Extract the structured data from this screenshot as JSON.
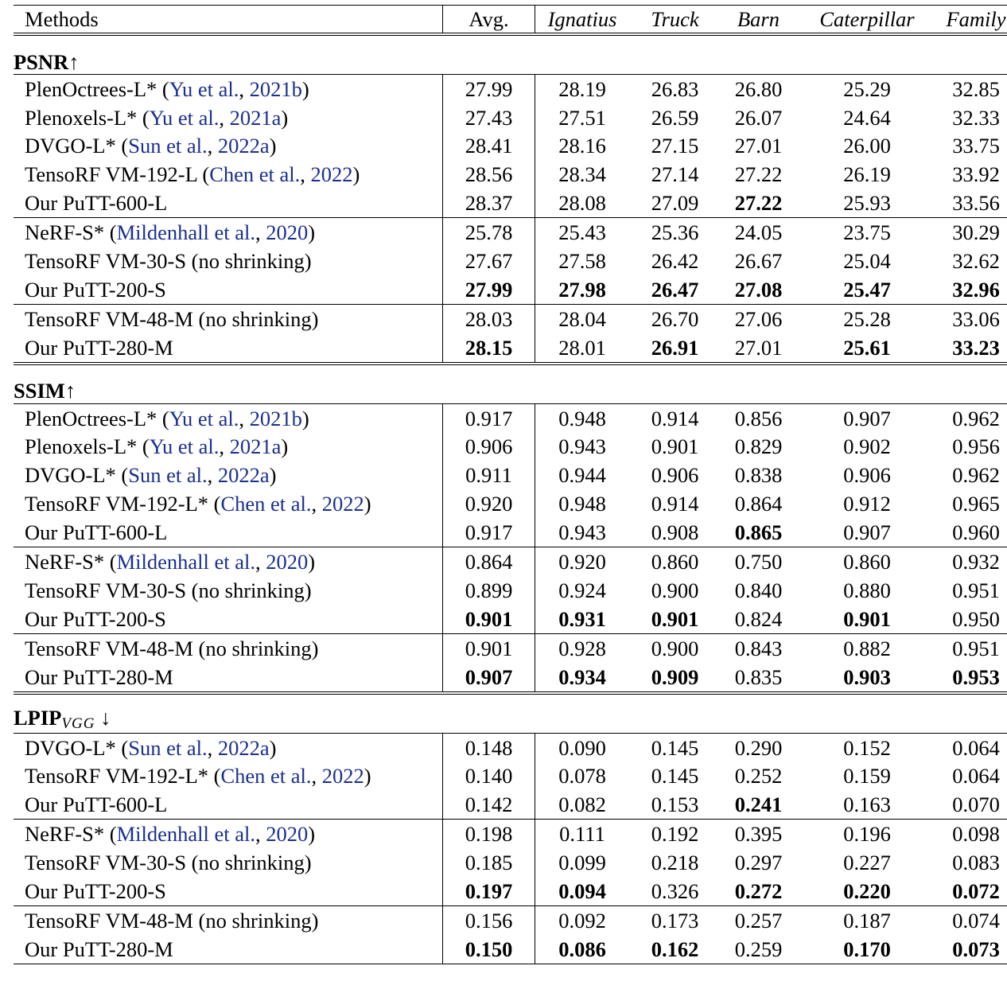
{
  "columns": [
    "Methods",
    "Avg.",
    "Ignatius",
    "Truck",
    "Barn",
    "Caterpillar",
    "Family"
  ],
  "sections": [
    {
      "name": "PSNR",
      "arrow": "↑",
      "subscript": "",
      "groups": [
        [
          {
            "method": "PlenOctrees-L* (",
            "cite_a": "Yu et al.",
            "cite_sep": ", ",
            "cite_b": "2021b",
            "suffix": ")",
            "values": [
              "27.99",
              "28.19",
              "26.83",
              "26.80",
              "25.29",
              "32.85"
            ],
            "bold": [
              false,
              false,
              false,
              false,
              false,
              false
            ]
          },
          {
            "method": "Plenoxels-L* (",
            "cite_a": "Yu et al.",
            "cite_sep": ", ",
            "cite_b": "2021a",
            "suffix": ")",
            "values": [
              "27.43",
              "27.51",
              "26.59",
              "26.07",
              "24.64",
              "32.33"
            ],
            "bold": [
              false,
              false,
              false,
              false,
              false,
              false
            ]
          },
          {
            "method": "DVGO-L* (",
            "cite_a": "Sun et al.",
            "cite_sep": ", ",
            "cite_b": "2022a",
            "suffix": ")",
            "values": [
              "28.41",
              "28.16",
              "27.15",
              "27.01",
              "26.00",
              "33.75"
            ],
            "bold": [
              false,
              false,
              false,
              false,
              false,
              false
            ]
          },
          {
            "method": "TensoRF VM-192-L (",
            "cite_a": "Chen et al.",
            "cite_sep": ", ",
            "cite_b": "2022",
            "suffix": ")",
            "values": [
              "28.56",
              "28.34",
              "27.14",
              "27.22",
              "26.19",
              "33.92"
            ],
            "bold": [
              false,
              false,
              false,
              false,
              false,
              false
            ]
          },
          {
            "method": "Our PuTT-600-L",
            "values": [
              "28.37",
              "28.08",
              "27.09",
              "27.22",
              "25.93",
              "33.56"
            ],
            "bold": [
              false,
              false,
              false,
              true,
              false,
              false
            ]
          }
        ],
        [
          {
            "method": "NeRF-S* (",
            "cite_a": "Mildenhall et al.",
            "cite_sep": ", ",
            "cite_b": "2020",
            "suffix": ")",
            "values": [
              "25.78",
              "25.43",
              "25.36",
              "24.05",
              "23.75",
              "30.29"
            ],
            "bold": [
              false,
              false,
              false,
              false,
              false,
              false
            ]
          },
          {
            "method": "TensoRF VM-30-S (no shrinking)",
            "values": [
              "27.67",
              "27.58",
              "26.42",
              "26.67",
              "25.04",
              "32.62"
            ],
            "bold": [
              false,
              false,
              false,
              false,
              false,
              false
            ]
          },
          {
            "method": "Our PuTT-200-S",
            "values": [
              "27.99",
              "27.98",
              "26.47",
              "27.08",
              "25.47",
              "32.96"
            ],
            "bold": [
              true,
              true,
              true,
              true,
              true,
              true
            ]
          }
        ],
        [
          {
            "method": "TensoRF VM-48-M (no shrinking)",
            "values": [
              "28.03",
              "28.04",
              "26.70",
              "27.06",
              "25.28",
              "33.06"
            ],
            "bold": [
              false,
              false,
              false,
              false,
              false,
              false
            ]
          },
          {
            "method": "Our PuTT-280-M",
            "values": [
              "28.15",
              "28.01",
              "26.91",
              "27.01",
              "25.61",
              "33.23"
            ],
            "bold": [
              true,
              false,
              true,
              false,
              true,
              true
            ]
          }
        ]
      ]
    },
    {
      "name": "SSIM",
      "arrow": "↑",
      "subscript": "",
      "groups": [
        [
          {
            "method": "PlenOctrees-L* (",
            "cite_a": "Yu et al.",
            "cite_sep": ", ",
            "cite_b": "2021b",
            "suffix": ")",
            "values": [
              "0.917",
              "0.948",
              "0.914",
              "0.856",
              "0.907",
              "0.962"
            ],
            "bold": [
              false,
              false,
              false,
              false,
              false,
              false
            ]
          },
          {
            "method": "Plenoxels-L* (",
            "cite_a": "Yu et al.",
            "cite_sep": ", ",
            "cite_b": "2021a",
            "suffix": ")",
            "values": [
              "0.906",
              "0.943",
              "0.901",
              "0.829",
              "0.902",
              "0.956"
            ],
            "bold": [
              false,
              false,
              false,
              false,
              false,
              false
            ]
          },
          {
            "method": "DVGO-L* (",
            "cite_a": "Sun et al.",
            "cite_sep": ", ",
            "cite_b": "2022a",
            "suffix": ")",
            "values": [
              "0.911",
              "0.944",
              "0.906",
              "0.838",
              "0.906",
              "0.962"
            ],
            "bold": [
              false,
              false,
              false,
              false,
              false,
              false
            ]
          },
          {
            "method": "TensoRF VM-192-L* (",
            "cite_a": "Chen et al.",
            "cite_sep": ", ",
            "cite_b": "2022",
            "suffix": ")",
            "values": [
              "0.920",
              "0.948",
              "0.914",
              "0.864",
              "0.912",
              "0.965"
            ],
            "bold": [
              false,
              false,
              false,
              false,
              false,
              false
            ]
          },
          {
            "method": "Our PuTT-600-L",
            "values": [
              "0.917",
              "0.943",
              "0.908",
              "0.865",
              "0.907",
              "0.960"
            ],
            "bold": [
              false,
              false,
              false,
              true,
              false,
              false
            ]
          }
        ],
        [
          {
            "method": "NeRF-S* (",
            "cite_a": "Mildenhall et al.",
            "cite_sep": ", ",
            "cite_b": "2020",
            "suffix": ")",
            "values": [
              "0.864",
              "0.920",
              "0.860",
              "0.750",
              "0.860",
              "0.932"
            ],
            "bold": [
              false,
              false,
              false,
              false,
              false,
              false
            ]
          },
          {
            "method": "TensoRF VM-30-S (no shrinking)",
            "values": [
              "0.899",
              "0.924",
              "0.900",
              "0.840",
              "0.880",
              "0.951"
            ],
            "bold": [
              false,
              false,
              false,
              false,
              false,
              false
            ]
          },
          {
            "method": "Our PuTT-200-S",
            "values": [
              "0.901",
              "0.931",
              "0.901",
              "0.824",
              "0.901",
              "0.950"
            ],
            "bold": [
              true,
              true,
              true,
              false,
              true,
              false
            ]
          }
        ],
        [
          {
            "method": "TensoRF VM-48-M (no shrinking)",
            "values": [
              "0.901",
              "0.928",
              "0.900",
              "0.843",
              "0.882",
              "0.951"
            ],
            "bold": [
              false,
              false,
              false,
              false,
              false,
              false
            ]
          },
          {
            "method": "Our PuTT-280-M",
            "values": [
              "0.907",
              "0.934",
              "0.909",
              "0.835",
              "0.903",
              "0.953"
            ],
            "bold": [
              true,
              true,
              true,
              false,
              true,
              true
            ]
          }
        ]
      ]
    },
    {
      "name": "LPIP",
      "arrow": " ↓",
      "subscript": "VGG",
      "groups": [
        [
          {
            "method": "DVGO-L* (",
            "cite_a": "Sun et al.",
            "cite_sep": ", ",
            "cite_b": "2022a",
            "suffix": ")",
            "values": [
              "0.148",
              "0.090",
              "0.145",
              "0.290",
              "0.152",
              "0.064"
            ],
            "bold": [
              false,
              false,
              false,
              false,
              false,
              false
            ]
          },
          {
            "method": "TensoRF VM-192-L* (",
            "cite_a": "Chen et al.",
            "cite_sep": ", ",
            "cite_b": "2022",
            "suffix": ")",
            "values": [
              "0.140",
              "0.078",
              "0.145",
              "0.252",
              "0.159",
              "0.064"
            ],
            "bold": [
              false,
              false,
              false,
              false,
              false,
              false
            ]
          },
          {
            "method": "Our PuTT-600-L",
            "values": [
              "0.142",
              "0.082",
              "0.153",
              "0.241",
              "0.163",
              "0.070"
            ],
            "bold": [
              false,
              false,
              false,
              true,
              false,
              false
            ]
          }
        ],
        [
          {
            "method": "NeRF-S* (",
            "cite_a": "Mildenhall et al.",
            "cite_sep": ", ",
            "cite_b": "2020",
            "suffix": ")",
            "values": [
              "0.198",
              "0.111",
              "0.192",
              "0.395",
              "0.196",
              "0.098"
            ],
            "bold": [
              false,
              false,
              false,
              false,
              false,
              false
            ]
          },
          {
            "method": "TensoRF VM-30-S (no shrinking)",
            "values": [
              "0.185",
              "0.099",
              "0.218",
              "0.297",
              "0.227",
              "0.083"
            ],
            "bold": [
              false,
              false,
              false,
              false,
              false,
              false
            ]
          },
          {
            "method": "Our PuTT-200-S",
            "values": [
              "0.197",
              "0.094",
              "0.326",
              "0.272",
              "0.220",
              "0.072"
            ],
            "bold": [
              true,
              true,
              false,
              true,
              true,
              true
            ]
          }
        ],
        [
          {
            "method": "TensoRF VM-48-M (no shrinking)",
            "values": [
              "0.156",
              "0.092",
              "0.173",
              "0.257",
              "0.187",
              "0.074"
            ],
            "bold": [
              false,
              false,
              false,
              false,
              false,
              false
            ]
          },
          {
            "method": "Our PuTT-280-M",
            "values": [
              "0.150",
              "0.086",
              "0.162",
              "0.259",
              "0.170",
              "0.073"
            ],
            "bold": [
              true,
              true,
              true,
              false,
              true,
              true
            ]
          }
        ]
      ]
    }
  ]
}
